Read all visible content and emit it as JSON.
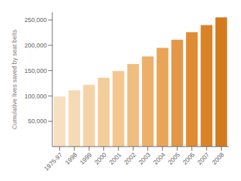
{
  "chart_data": {
    "type": "bar",
    "categories": [
      "1975-97",
      "1998",
      "1999",
      "2000",
      "2001",
      "2002",
      "2003",
      "2004",
      "2005",
      "2006",
      "2007",
      "2008"
    ],
    "values": [
      99000,
      111000,
      122000,
      136000,
      149000,
      163000,
      178000,
      195000,
      211000,
      226000,
      240000,
      255000
    ],
    "colors": [
      "#f8dfc0",
      "#f6d9b5",
      "#f5d3a8",
      "#f4cd9c",
      "#f3c78f",
      "#f0bd80",
      "#edb06a",
      "#e9a458",
      "#e49748",
      "#df8c35",
      "#d98226",
      "#d47a1e"
    ],
    "ylabel": "Cumulative lives saved by seat belts",
    "ylim": [
      0,
      265000
    ],
    "yticks": [
      {
        "value": 50000,
        "label": "50,000"
      },
      {
        "value": 100000,
        "label": "100,000"
      },
      {
        "value": 150000,
        "label": "150,000"
      },
      {
        "value": 200000,
        "label": "200,000"
      },
      {
        "value": 250000,
        "label": "250,000"
      }
    ],
    "grid": false
  }
}
